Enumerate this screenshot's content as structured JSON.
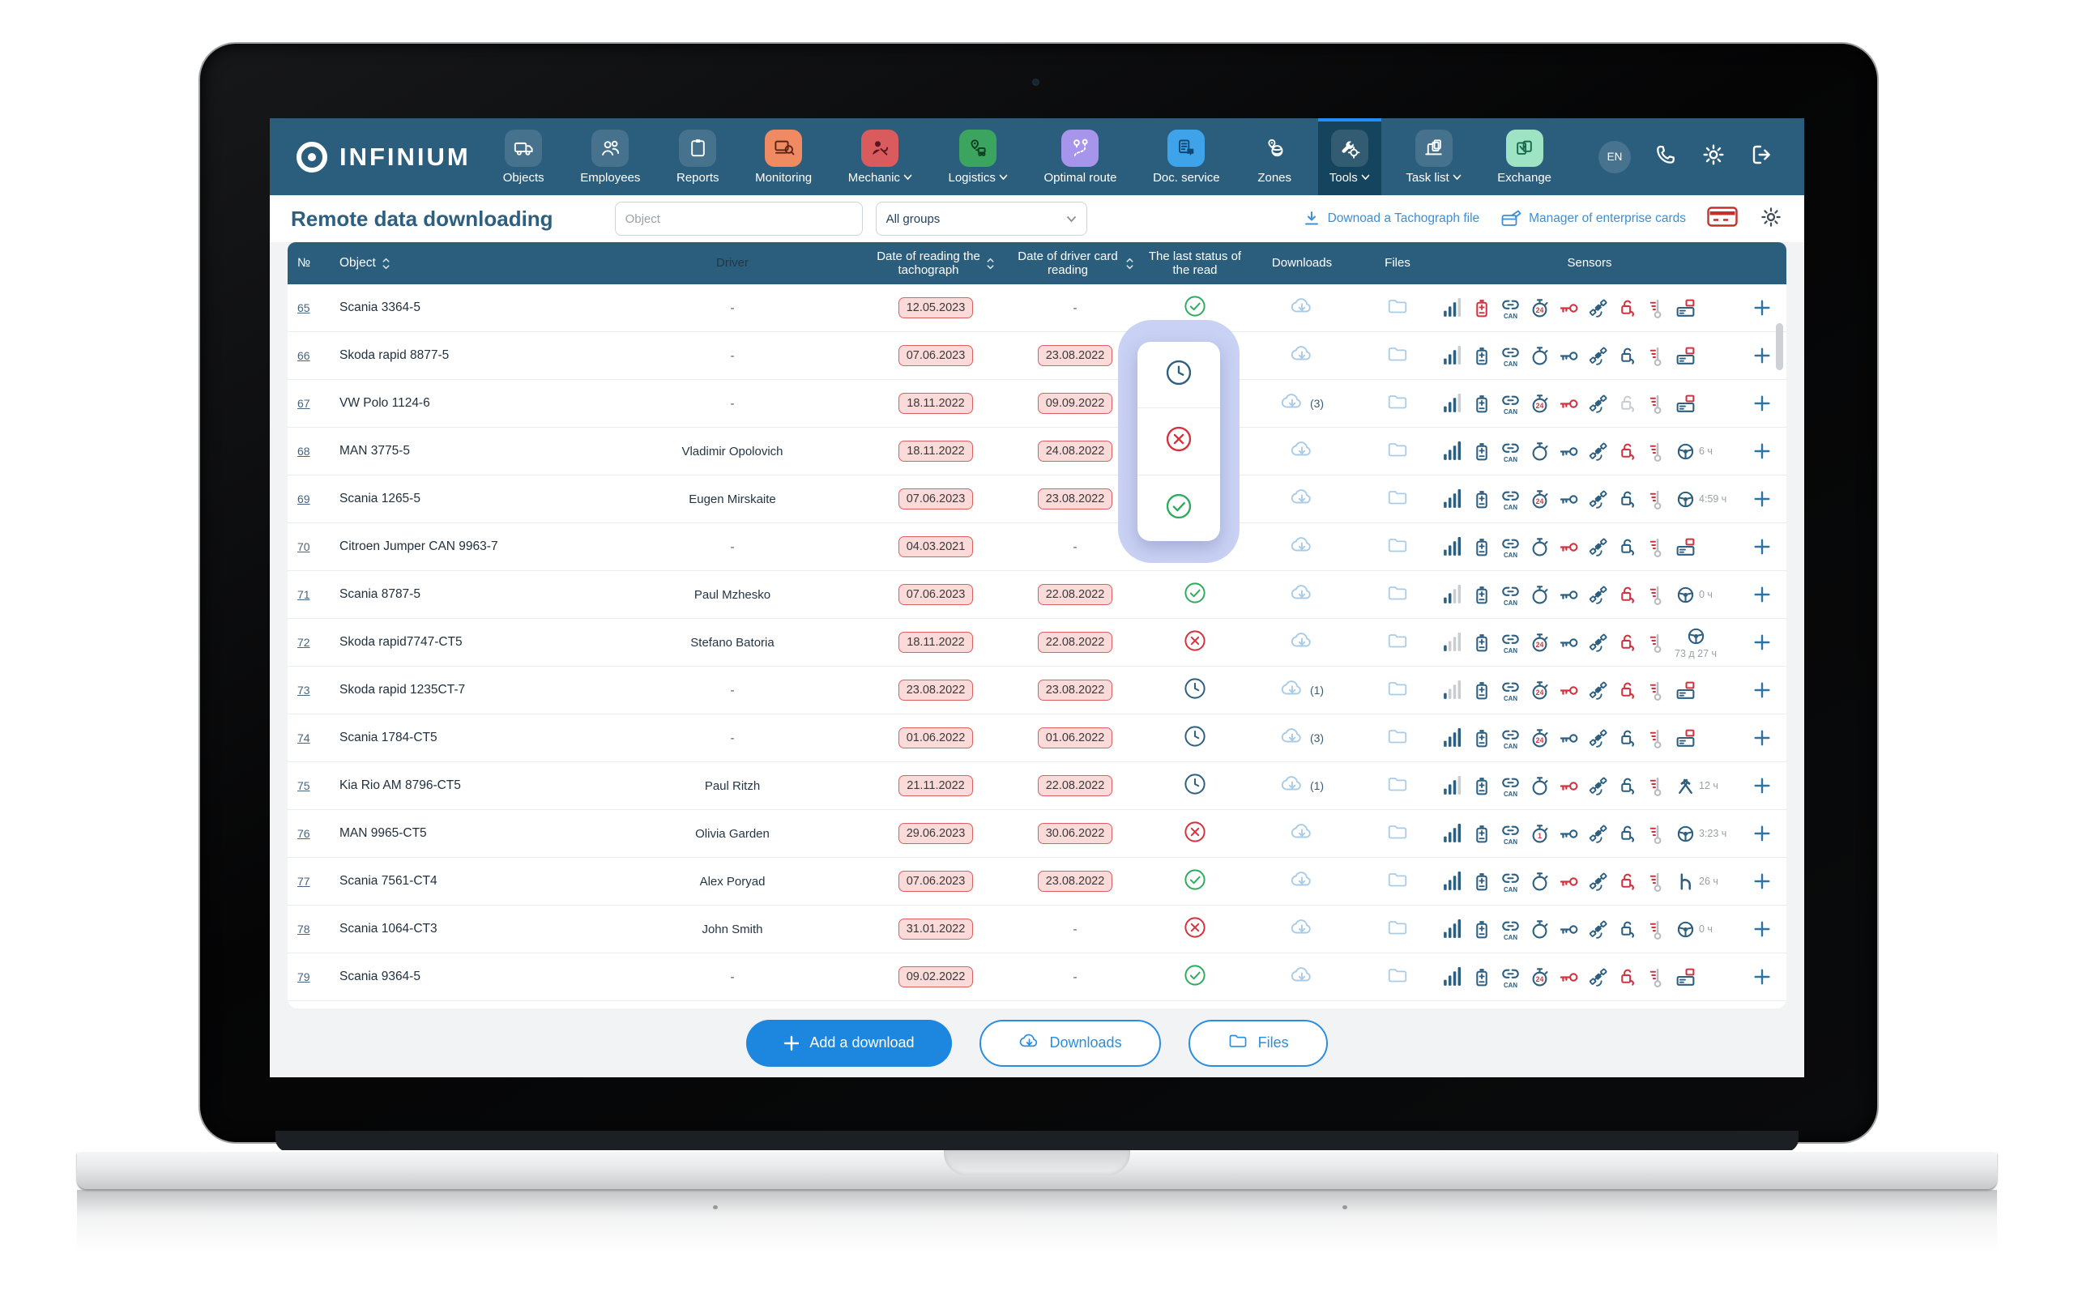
{
  "brand": {
    "name": "infinium"
  },
  "colors": {
    "navbar": "#2b5d7d",
    "icon_blue": "#2d5f80",
    "icon_red": "#cf3440",
    "icon_gray": "#c9cdd2",
    "icon_lightblue": "#a9cbe6",
    "status_green": "#2eac5e",
    "status_red": "#d6313d",
    "status_blue": "#2d5f80",
    "link_blue": "#3d8fd1",
    "accent_blue": "#1d86df",
    "chip_bg": "#fbdada",
    "chip_border": "#dd5f5f",
    "popup_bg": "#c5cef3"
  },
  "nav": {
    "lang_badge": "EN",
    "items": [
      {
        "label": "Objects",
        "icon": "truck",
        "style": "ghost",
        "dropdown": false,
        "active": false
      },
      {
        "label": "Employees",
        "icon": "people",
        "style": "ghost",
        "dropdown": false,
        "active": false
      },
      {
        "label": "Reports",
        "icon": "clipboard",
        "style": "ghost",
        "dropdown": false,
        "active": false
      },
      {
        "label": "Monitoring",
        "icon": "monitor",
        "style": "orange",
        "dropdown": false,
        "active": false
      },
      {
        "label": "Mechanic",
        "icon": "mechanic",
        "style": "red",
        "dropdown": true,
        "active": false
      },
      {
        "label": "Logistics",
        "icon": "logistics",
        "style": "green",
        "dropdown": true,
        "active": false
      },
      {
        "label": "Optimal route",
        "icon": "route",
        "style": "purple",
        "dropdown": false,
        "active": false
      },
      {
        "label": "Doc. service",
        "icon": "docs",
        "style": "blue",
        "dropdown": false,
        "active": false
      },
      {
        "label": "Zones",
        "icon": "zones",
        "style": "plain",
        "dropdown": false,
        "active": false
      },
      {
        "label": "Tools",
        "icon": "tools",
        "style": "ghost",
        "dropdown": true,
        "active": true
      },
      {
        "label": "Task list",
        "icon": "tasklist",
        "style": "ghost",
        "dropdown": true,
        "active": false
      },
      {
        "label": "Exchange",
        "icon": "exchange",
        "style": "mint",
        "dropdown": false,
        "active": false
      }
    ]
  },
  "header": {
    "title": "Remote data downloading",
    "search_placeholder": "Object",
    "groups_value": "All groups",
    "link_tachograph": "Downoad a Tachograph file",
    "link_cards": "Manager of enterprise cards"
  },
  "table": {
    "columns": [
      {
        "key": "num",
        "label": "№",
        "sortable": false
      },
      {
        "key": "object",
        "label": "Object",
        "sortable": true
      },
      {
        "key": "driver",
        "label": "Driver",
        "sortable": false
      },
      {
        "key": "tacho",
        "label": "Date of reading the tachograph",
        "sortable": true
      },
      {
        "key": "card",
        "label": "Date of driver card reading",
        "sortable": true
      },
      {
        "key": "status",
        "label": "The last status of the read",
        "sortable": false
      },
      {
        "key": "downloads",
        "label": "Downloads",
        "sortable": false
      },
      {
        "key": "files",
        "label": "Files",
        "sortable": false
      },
      {
        "key": "sensors",
        "label": "Sensors",
        "sortable": false
      }
    ],
    "rows": [
      {
        "n": "65",
        "object": "Scania 3364-5",
        "driver": "-",
        "tacho": "12.05.2023",
        "card": "-",
        "status": "success",
        "dl": "",
        "sig": 3,
        "bat": "red",
        "sw": "24",
        "key": "red",
        "lock": "red",
        "last": "reader",
        "last_label": "",
        "last_stack": false
      },
      {
        "n": "66",
        "object": "Skoda rapid 8877-5",
        "driver": "-",
        "tacho": "07.06.2023",
        "card": "23.08.2022",
        "status": "",
        "dl": "",
        "sig": 3,
        "bat": "blue",
        "sw": "",
        "key": "blue",
        "lock": "blue",
        "last": "reader",
        "last_label": "",
        "last_stack": false
      },
      {
        "n": "67",
        "object": "VW Polo 1124-6",
        "driver": "-",
        "tacho": "18.11.2022",
        "card": "09.09.2022",
        "status": "",
        "dl": "(3)",
        "sig": 3,
        "bat": "blue",
        "sw": "24",
        "key": "red",
        "lock": "gray",
        "last": "reader",
        "last_label": "",
        "last_stack": false
      },
      {
        "n": "68",
        "object": "MAN 3775-5",
        "driver": "Vladimir Opolovich",
        "tacho": "18.11.2022",
        "card": "24.08.2022",
        "status": "",
        "dl": "",
        "sig": 4,
        "bat": "blue",
        "sw": "",
        "key": "blue",
        "lock": "red",
        "last": "wheel",
        "last_label": "6 ч",
        "last_stack": false
      },
      {
        "n": "69",
        "object": "Scania 1265-5",
        "driver": "Eugen Mirskaite",
        "tacho": "07.06.2023",
        "card": "23.08.2022",
        "status": "",
        "dl": "",
        "sig": 4,
        "bat": "blue",
        "sw": "24",
        "key": "blue",
        "lock": "blue",
        "last": "wheel",
        "last_label": "4:59 ч",
        "last_stack": false
      },
      {
        "n": "70",
        "object": "Citroen Jumper CAN 9963-7",
        "driver": "-",
        "tacho": "04.03.2021",
        "card": "-",
        "status": "",
        "dl": "",
        "sig": 4,
        "bat": "blue",
        "sw": "",
        "key": "red",
        "lock": "blue",
        "last": "reader",
        "last_label": "",
        "last_stack": false
      },
      {
        "n": "71",
        "object": "Scania 8787-5",
        "driver": "Paul Mzhesko",
        "tacho": "07.06.2023",
        "card": "22.08.2022",
        "status": "success",
        "dl": "",
        "sig": 2,
        "bat": "blue",
        "sw": "",
        "key": "blue",
        "lock": "red",
        "last": "wheel",
        "last_label": "0 ч",
        "last_stack": false
      },
      {
        "n": "72",
        "object": "Skoda rapid7747-CT5",
        "driver": "Stefano Batoria",
        "tacho": "18.11.2022",
        "card": "22.08.2022",
        "status": "error",
        "dl": "",
        "sig": 1,
        "bat": "blue",
        "sw": "24",
        "key": "blue",
        "lock": "red",
        "last": "wheel",
        "last_label": "73 д 27 ч",
        "last_stack": true
      },
      {
        "n": "73",
        "object": "Skoda rapid 1235CT-7",
        "driver": "-",
        "tacho": "23.08.2022",
        "card": "23.08.2022",
        "status": "pending",
        "dl": "(1)",
        "sig": 1,
        "bat": "blue",
        "sw": "24",
        "key": "red",
        "lock": "red",
        "last": "reader",
        "last_label": "",
        "last_stack": false
      },
      {
        "n": "74",
        "object": "Scania 1784-CT5",
        "driver": "-",
        "tacho": "01.06.2022",
        "card": "01.06.2022",
        "status": "pending",
        "dl": "(3)",
        "sig": 4,
        "bat": "blue",
        "sw": "24",
        "key": "blue",
        "lock": "blue",
        "last": "reader",
        "last_label": "",
        "last_stack": false
      },
      {
        "n": "75",
        "object": "Kia Rio AM 8796-CT5",
        "driver": "Paul Ritzh",
        "tacho": "21.11.2022",
        "card": "22.08.2022",
        "status": "pending",
        "dl": "(1)",
        "sig": 3,
        "bat": "blue",
        "sw": "",
        "key": "red",
        "lock": "blue",
        "last": "hammers",
        "last_label": "12 ч",
        "last_stack": false
      },
      {
        "n": "76",
        "object": "MAN 9965-CT5",
        "driver": "Olivia Garden",
        "tacho": "29.06.2023",
        "card": "30.06.2022",
        "status": "error",
        "dl": "",
        "sig": 4,
        "bat": "blue",
        "sw": "1",
        "key": "blue",
        "lock": "blue",
        "last": "wheel",
        "last_label": "3:23 ч",
        "last_stack": false
      },
      {
        "n": "77",
        "object": "Scania 7561-CT4",
        "driver": "Alex Poryad",
        "tacho": "07.06.2023",
        "card": "23.08.2022",
        "status": "success",
        "dl": "",
        "sig": 4,
        "bat": "blue",
        "sw": "",
        "key": "red",
        "lock": "red",
        "last": "seat",
        "last_label": "26 ч",
        "last_stack": false
      },
      {
        "n": "78",
        "object": "Scania 1064-CT3",
        "driver": "John Smith",
        "tacho": "31.01.2022",
        "card": "-",
        "status": "error",
        "dl": "",
        "sig": 4,
        "bat": "blue",
        "sw": "",
        "key": "blue",
        "lock": "blue",
        "last": "wheel",
        "last_label": "0 ч",
        "last_stack": false
      },
      {
        "n": "79",
        "object": "Scania 9364-5",
        "driver": "-",
        "tacho": "09.02.2022",
        "card": "-",
        "status": "success",
        "dl": "",
        "sig": 4,
        "bat": "blue",
        "sw": "24",
        "key": "red",
        "lock": "red",
        "last": "reader",
        "last_label": "",
        "last_stack": false
      }
    ]
  },
  "status_popup": {
    "items": [
      "pending",
      "error",
      "success"
    ]
  },
  "footer": {
    "add_label": "Add a download",
    "downloads_label": "Downloads",
    "files_label": "Files"
  }
}
